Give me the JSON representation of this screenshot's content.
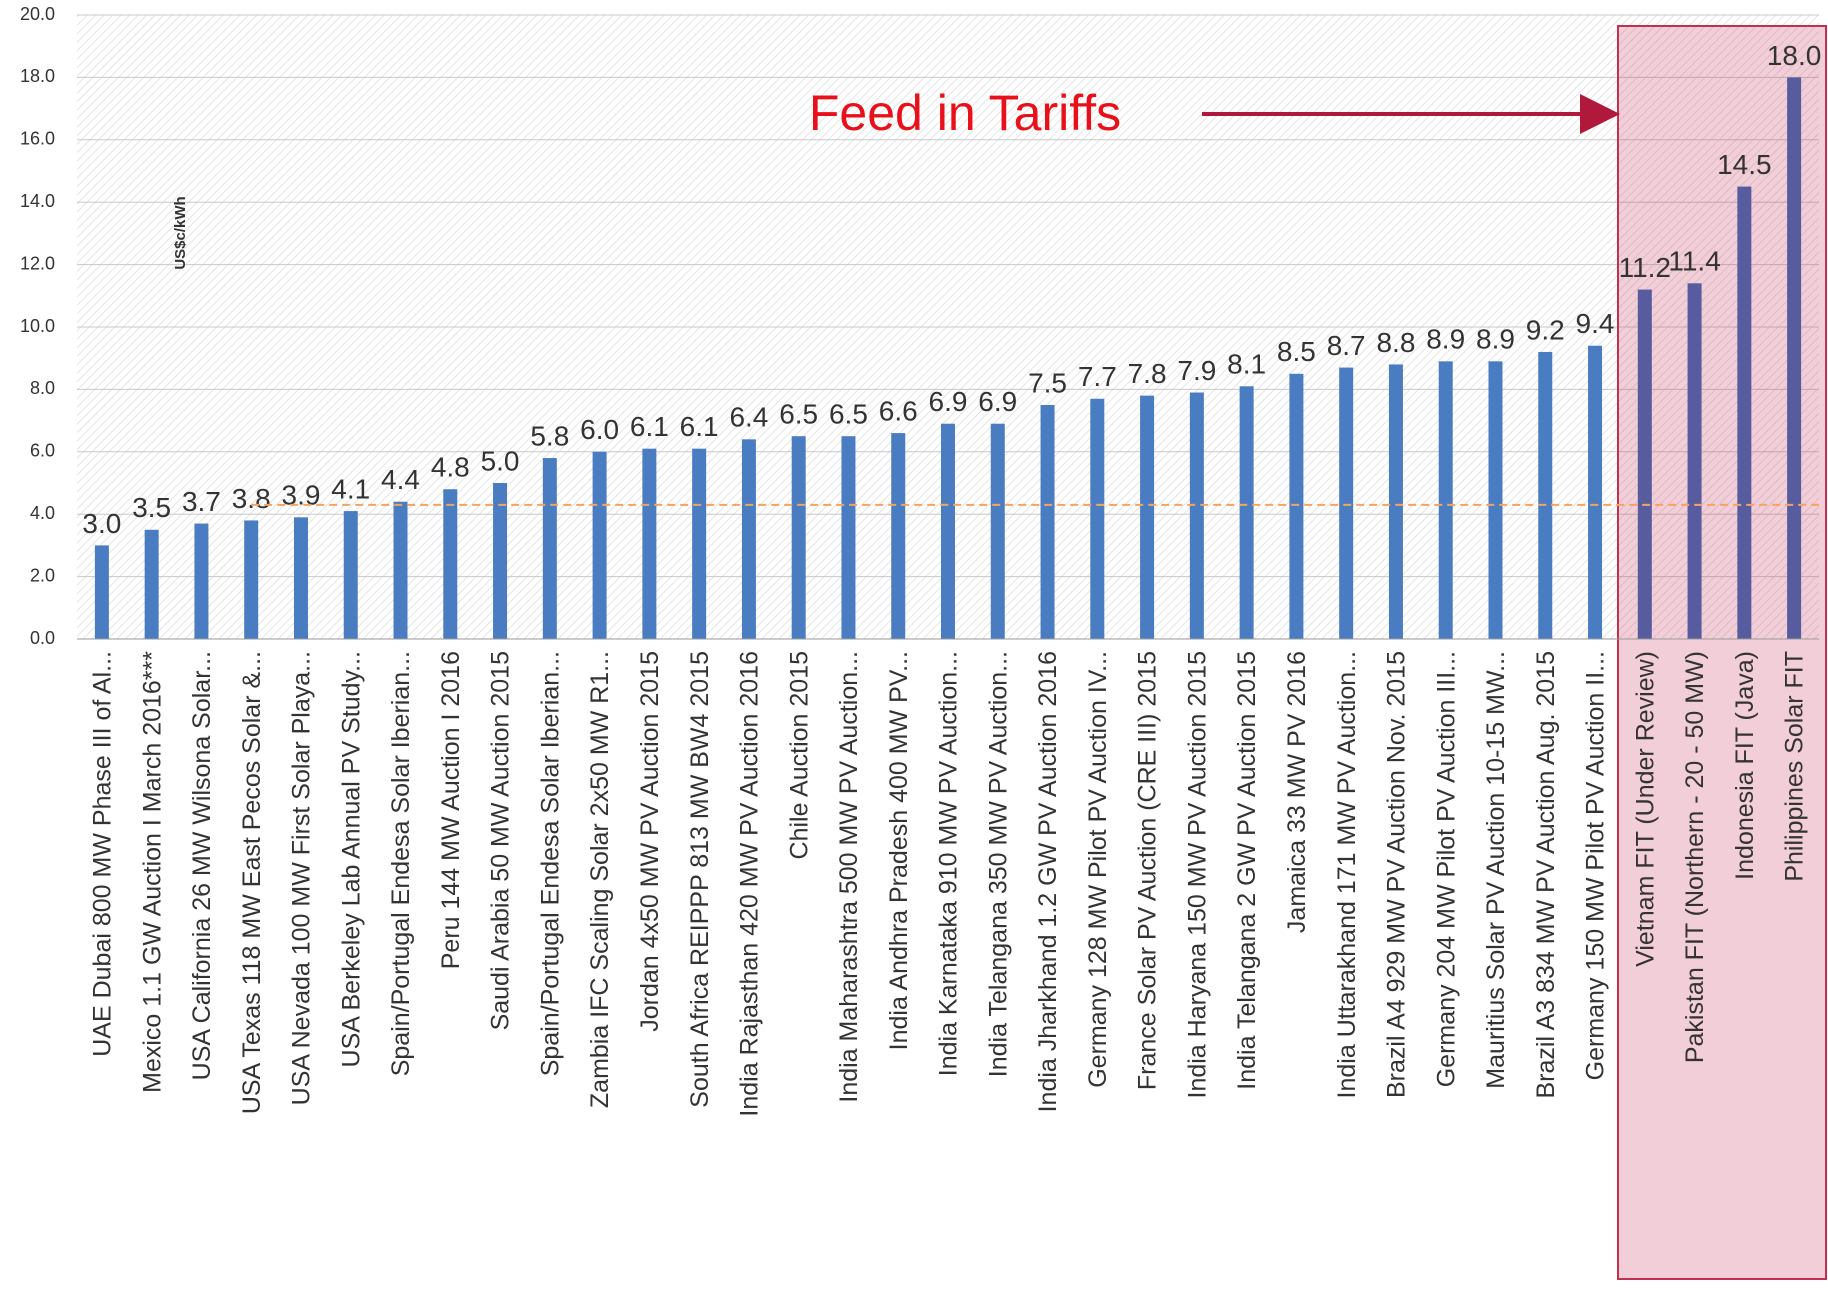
{
  "chart_data": {
    "type": "bar",
    "y_label": "US$c/kWh",
    "annotation": "Feed in Tariffs",
    "categories": [
      "UAE Dubai 800 MW Phase III of Al...",
      "Mexico 1.1 GW Auction I March 2016***",
      "USA California 26 MW Wilsona Solar...",
      "USA Texas 118 MW East Pecos Solar &...",
      "USA Nevada 100 MW First Solar Playa...",
      "USA Berkeley Lab Annual PV Study...",
      "Spain/Portugal Endesa Solar Iberian...",
      "Peru 144 MW Auction I 2016",
      "Saudi Arabia 50 MW Auction 2015",
      "Spain/Portugal Endesa Solar Iberian...",
      "Zambia IFC Scaling Solar 2x50 MW R1...",
      "Jordan 4x50 MW PV Auction 2015",
      "South Africa REIPPP 813 MW BW4 2015",
      "India Rajasthan 420 MW PV Auction 2016",
      "Chile Auction 2015",
      "India Maharashtra 500 MW PV Auction...",
      "India Andhra Pradesh 400 MW PV...",
      "India Karnataka 910 MW PV Auction...",
      "India Telangana 350 MW PV Auction...",
      "India Jharkhand 1.2 GW PV Auction 2016",
      "Germany 128 MW Pilot PV Auction IV...",
      "France Solar PV Auction (CRE III) 2015",
      "India Haryana 150 MW PV Auction 2015",
      "India Telangana 2 GW PV Auction 2015",
      "Jamaica 33 MW PV 2016",
      "India Uttarakhand 171 MW PV Auction...",
      "Brazil A4 929 MW PV Auction Nov. 2015",
      "Germany 204 MW Pilot PV Auction III...",
      "Mauritius Solar PV Auction 10-15 MW...",
      "Brazil A3 834 MW PV Auction Aug. 2015",
      "Germany 150 MW Pilot PV Auction II...",
      "Vietnam FIT (Under Review)",
      "Pakistan FIT (Northern - 20 - 50 MW)",
      "Indonesia FIT (Java)",
      "Philippines Solar FIT"
    ],
    "values": [
      3.0,
      3.5,
      3.7,
      3.8,
      3.9,
      4.1,
      4.4,
      4.8,
      5.0,
      5.8,
      6.0,
      6.1,
      6.1,
      6.4,
      6.5,
      6.5,
      6.6,
      6.9,
      6.9,
      7.5,
      7.7,
      7.8,
      7.9,
      8.1,
      8.5,
      8.7,
      8.8,
      8.9,
      8.9,
      9.2,
      9.4,
      11.2,
      11.4,
      14.5,
      18.0
    ],
    "value_labels": [
      "3.0",
      "3.5",
      "3.7",
      "3.8",
      "3.9",
      "4.1",
      "4.4",
      "4.8",
      "5.0",
      "5.8",
      "6.0",
      "6.1",
      "6.1",
      "6.4",
      "6.5",
      "6.5",
      "6.6",
      "6.9",
      "6.9",
      "7.5",
      "7.7",
      "7.8",
      "7.9",
      "8.1",
      "8.5",
      "8.7",
      "8.8",
      "8.9",
      "8.9",
      "9.2",
      "9.4",
      "11.2",
      "11.4",
      "14.5",
      "18.0"
    ],
    "colors": [
      "#4a7cc1",
      "#4a7cc1",
      "#4a7cc1",
      "#4a7cc1",
      "#4a7cc1",
      "#4a7cc1",
      "#4a7cc1",
      "#4a7cc1",
      "#4a7cc1",
      "#4a7cc1",
      "#4a7cc1",
      "#4a7cc1",
      "#4a7cc1",
      "#4a7cc1",
      "#4a7cc1",
      "#4a7cc1",
      "#4a7cc1",
      "#4a7cc1",
      "#4a7cc1",
      "#4a7cc1",
      "#4a7cc1",
      "#4a7cc1",
      "#4a7cc1",
      "#4a7cc1",
      "#4a7cc1",
      "#4a7cc1",
      "#4a7cc1",
      "#4a7cc1",
      "#4a7cc1",
      "#4a7cc1",
      "#4a7cc1",
      "#565c9e",
      "#565c9e",
      "#565c9e",
      "#565c9e"
    ],
    "reference_value": 4.3,
    "ylim": [
      0,
      20
    ],
    "yticks": [
      {
        "value": 0,
        "label": "0.0"
      },
      {
        "value": 2,
        "label": "2.0"
      },
      {
        "value": 4,
        "label": "4.0"
      },
      {
        "value": 6,
        "label": "6.0"
      },
      {
        "value": 8,
        "label": "8.0"
      },
      {
        "value": 10,
        "label": "10.0"
      },
      {
        "value": 12,
        "label": "12.0"
      },
      {
        "value": 14,
        "label": "14.0"
      },
      {
        "value": 16,
        "label": "16.0"
      },
      {
        "value": 18,
        "label": "18.0"
      },
      {
        "value": 20,
        "label": "20.0"
      }
    ],
    "grid": true
  }
}
